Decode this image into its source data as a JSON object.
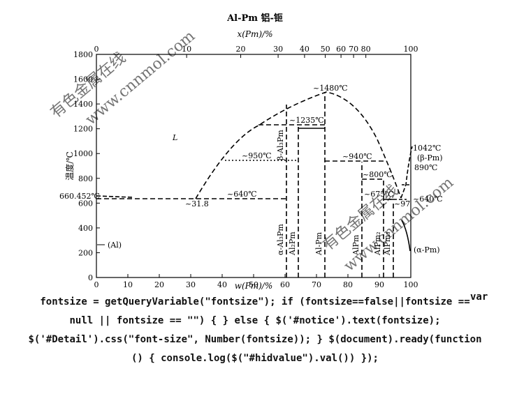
{
  "title": "Al-Pm  铝-钷",
  "top_axis": {
    "label": "x(Pm)/%",
    "ticks": [
      {
        "value": 0,
        "label": "0"
      },
      {
        "value": 10,
        "label": "10"
      },
      {
        "value": 20,
        "label": "20"
      },
      {
        "value": 30,
        "label": "30"
      },
      {
        "value": 40,
        "label": "40"
      },
      {
        "value": 50,
        "label": "50"
      },
      {
        "value": 60,
        "label": "60"
      },
      {
        "value": 70,
        "label": "70"
      },
      {
        "value": 80,
        "label": "80"
      },
      {
        "value": 100,
        "label": "100"
      }
    ]
  },
  "bottom_axis": {
    "label": "w(Pm)/%",
    "ticks": [
      "0",
      "10",
      "20",
      "30",
      "40",
      "50",
      "60",
      "70",
      "80",
      "90",
      "100"
    ],
    "left_element": "Al",
    "right_element": "Pm"
  },
  "y_axis": {
    "label": "温度/℃",
    "ticks": [
      "0",
      "200",
      "400",
      "600",
      "800",
      "1000",
      "1200",
      "1400",
      "1600",
      "1800"
    ],
    "range": [
      0,
      1800
    ]
  },
  "labels": {
    "liquid": "L",
    "al_melt": "660.452℃",
    "al_phase": "(Al)",
    "eutectic_comp": "~31.8",
    "eutectic_temp": "~640℃",
    "t_950": "~950℃",
    "t_1235": "~1235℃",
    "t_1480": "~1480℃",
    "t_940": "~940℃",
    "t_800": "~800℃",
    "t_675": "~675℃",
    "comp_97": "~97",
    "t_640_right": "~640℃",
    "pm_melt": "1042℃",
    "beta_pm": "(β-Pm)",
    "t_890": "890℃",
    "alpha_pm": "(α-Pm)",
    "beta_al3pm": "β-Al₃Pm",
    "alpha_al3pm": "α-Al₃Pm",
    "al2pm": "Al₂Pm",
    "alpm_72": "Al-Pm",
    "alpm_84": "AlPm",
    "alpm2_91": "AlPm₂",
    "alpm3_94": "AlPm₃"
  },
  "watermark": [
    "有色金属在线",
    "www.cnnmol.com"
  ],
  "code_text": {
    "tail": "var",
    "lines": [
      "fontsize = getQueryVariable(\"fontsize\"); if (fontsize==false||fontsize ==",
      "null || fontsize == \"\") { } else { $('#notice').text(fontsize);",
      "$('#Detail').css(\"font-size\", Number(fontsize)); } $(document).ready(function",
      "() { console.log($(\"#hidvalue\").val()) });"
    ]
  }
}
